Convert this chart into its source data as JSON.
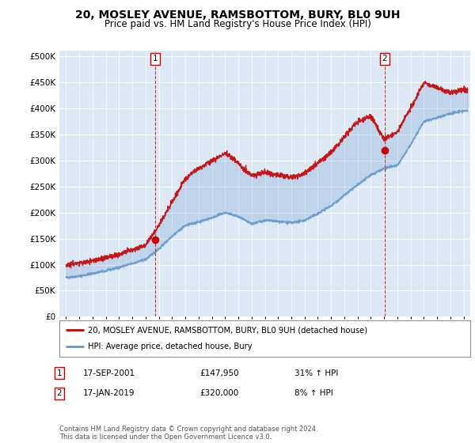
{
  "title": "20, MOSLEY AVENUE, RAMSBOTTOM, BURY, BL0 9UH",
  "subtitle": "Price paid vs. HM Land Registry's House Price Index (HPI)",
  "ylabel_ticks": [
    "£0",
    "£50K",
    "£100K",
    "£150K",
    "£200K",
    "£250K",
    "£300K",
    "£350K",
    "£400K",
    "£450K",
    "£500K"
  ],
  "ytick_vals": [
    0,
    50000,
    100000,
    150000,
    200000,
    250000,
    300000,
    350000,
    400000,
    450000,
    500000
  ],
  "xlim": [
    1994.5,
    2025.5
  ],
  "ylim": [
    0,
    510000
  ],
  "sale1_year": 2001.72,
  "sale1_price": 147950,
  "sale2_year": 2019.05,
  "sale2_price": 320000,
  "legend_property": "20, MOSLEY AVENUE, RAMSBOTTOM, BURY, BL0 9UH (detached house)",
  "legend_hpi": "HPI: Average price, detached house, Bury",
  "table_rows": [
    {
      "num": "1",
      "date": "17-SEP-2001",
      "price": "£147,950",
      "hpi": "31% ↑ HPI"
    },
    {
      "num": "2",
      "date": "17-JAN-2019",
      "price": "£320,000",
      "hpi": "8% ↑ HPI"
    }
  ],
  "footnote": "Contains HM Land Registry data © Crown copyright and database right 2024.\nThis data is licensed under the Open Government Licence v3.0.",
  "line_color_property": "#cc0000",
  "line_color_hpi": "#6699cc",
  "plot_bg_color": "#dde8f5",
  "bg_color": "#ffffff",
  "grid_color": "#ffffff",
  "title_fontsize": 10,
  "subtitle_fontsize": 8.5
}
